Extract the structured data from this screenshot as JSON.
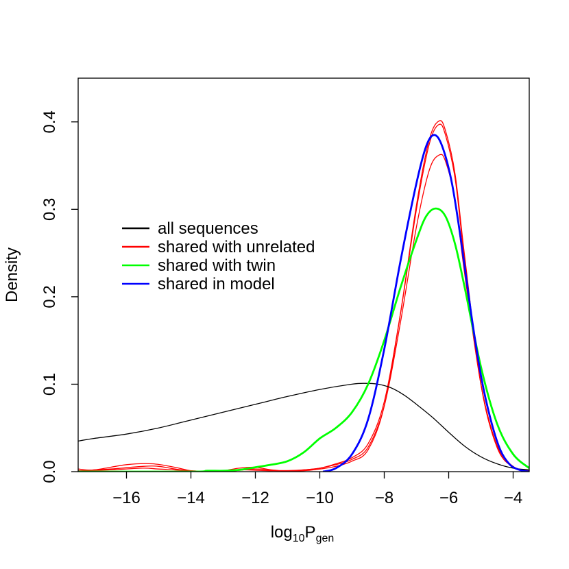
{
  "chart_data": {
    "type": "line",
    "title": "",
    "xlabel": {
      "base": "log",
      "sub1": "10",
      "main": "P",
      "sub2": "gen"
    },
    "ylabel": "Density",
    "xlim": [
      -17.5,
      -3.5
    ],
    "ylim": [
      0,
      0.45
    ],
    "grid": false,
    "legend_position": "center-left",
    "x_ticks": [
      -16,
      -14,
      -12,
      -10,
      -8,
      -6,
      -4
    ],
    "x_tick_labels": [
      "−16",
      "−14",
      "−12",
      "−10",
      "−8",
      "−6",
      "−4"
    ],
    "y_ticks": [
      0.0,
      0.1,
      0.2,
      0.3,
      0.4
    ],
    "y_tick_labels": [
      "0.0",
      "0.1",
      "0.2",
      "0.3",
      "0.4"
    ],
    "legend": [
      {
        "label": "all sequences",
        "color": "#000000"
      },
      {
        "label": "shared with unrelated",
        "color": "#ff0000"
      },
      {
        "label": "shared with twin",
        "color": "#00ff00"
      },
      {
        "label": "shared in model",
        "color": "#0000ff"
      }
    ],
    "series": [
      {
        "group": "all sequences",
        "color": "#000000",
        "width": 1.3,
        "points": [
          [
            -17.5,
            0.035
          ],
          [
            -17,
            0.038
          ],
          [
            -16,
            0.043
          ],
          [
            -15,
            0.05
          ],
          [
            -14,
            0.059
          ],
          [
            -13,
            0.068
          ],
          [
            -12,
            0.077
          ],
          [
            -11,
            0.086
          ],
          [
            -10,
            0.094
          ],
          [
            -9,
            0.1
          ],
          [
            -8.6,
            0.101
          ],
          [
            -8.2,
            0.1
          ],
          [
            -7.8,
            0.096
          ],
          [
            -7.4,
            0.088
          ],
          [
            -7,
            0.077
          ],
          [
            -6.5,
            0.062
          ],
          [
            -6,
            0.045
          ],
          [
            -5.5,
            0.029
          ],
          [
            -5,
            0.017
          ],
          [
            -4.5,
            0.009
          ],
          [
            -4,
            0.004
          ],
          [
            -3.5,
            0.002
          ]
        ]
      },
      {
        "group": "shared with unrelated",
        "color": "#ff0000",
        "width": 1.3,
        "points": [
          [
            -17.5,
            0.003
          ],
          [
            -17,
            0.002
          ],
          [
            -16,
            0.008
          ],
          [
            -15.2,
            0.009
          ],
          [
            -14.5,
            0.005
          ],
          [
            -14,
            0.001
          ],
          [
            -13.5,
            0
          ],
          [
            -13,
            0.001
          ],
          [
            -12.5,
            0.004
          ],
          [
            -12,
            0.005
          ],
          [
            -11.5,
            0.002
          ],
          [
            -11,
            0.001
          ],
          [
            -10.5,
            0.002
          ],
          [
            -10,
            0.004
          ],
          [
            -9.5,
            0.008
          ],
          [
            -9,
            0.014
          ],
          [
            -8.5,
            0.028
          ],
          [
            -8,
            0.075
          ],
          [
            -7.5,
            0.17
          ],
          [
            -7,
            0.28
          ],
          [
            -6.6,
            0.345
          ],
          [
            -6.3,
            0.362
          ],
          [
            -6.1,
            0.355
          ],
          [
            -5.8,
            0.31
          ],
          [
            -5.5,
            0.225
          ],
          [
            -5,
            0.1
          ],
          [
            -4.5,
            0.03
          ],
          [
            -4,
            0.006
          ],
          [
            -3.5,
            0.001
          ]
        ]
      },
      {
        "group": "shared with unrelated",
        "color": "#ff0000",
        "width": 1.3,
        "points": [
          [
            -17.5,
            0.001
          ],
          [
            -16.5,
            0.003
          ],
          [
            -15.5,
            0.006
          ],
          [
            -15,
            0.006
          ],
          [
            -14.3,
            0.002
          ],
          [
            -13.5,
            0
          ],
          [
            -12.5,
            0.002
          ],
          [
            -11.5,
            0.001
          ],
          [
            -10.5,
            0.002
          ],
          [
            -10,
            0.004
          ],
          [
            -9.5,
            0.009
          ],
          [
            -9,
            0.016
          ],
          [
            -8.5,
            0.032
          ],
          [
            -8,
            0.08
          ],
          [
            -7.5,
            0.18
          ],
          [
            -7,
            0.3
          ],
          [
            -6.6,
            0.375
          ],
          [
            -6.3,
            0.397
          ],
          [
            -6.1,
            0.385
          ],
          [
            -5.8,
            0.335
          ],
          [
            -5.5,
            0.24
          ],
          [
            -5,
            0.1
          ],
          [
            -4.5,
            0.028
          ],
          [
            -4,
            0.005
          ],
          [
            -3.5,
            0
          ]
        ]
      },
      {
        "group": "shared with unrelated",
        "color": "#ff0000",
        "width": 1.3,
        "points": [
          [
            -17.5,
            0.001
          ],
          [
            -16.5,
            0.002
          ],
          [
            -15.5,
            0.004
          ],
          [
            -15,
            0.003
          ],
          [
            -14,
            0.001
          ],
          [
            -13,
            0
          ],
          [
            -12,
            0.003
          ],
          [
            -11.3,
            0.001
          ],
          [
            -10.5,
            0.001
          ],
          [
            -10,
            0.003
          ],
          [
            -9.5,
            0.006
          ],
          [
            -9,
            0.012
          ],
          [
            -8.5,
            0.025
          ],
          [
            -8,
            0.075
          ],
          [
            -7.5,
            0.18
          ],
          [
            -7,
            0.305
          ],
          [
            -6.6,
            0.38
          ],
          [
            -6.3,
            0.401
          ],
          [
            -6.1,
            0.39
          ],
          [
            -5.8,
            0.34
          ],
          [
            -5.5,
            0.245
          ],
          [
            -5,
            0.1
          ],
          [
            -4.5,
            0.028
          ],
          [
            -4,
            0.005
          ],
          [
            -3.5,
            0
          ]
        ]
      },
      {
        "group": "shared with twin",
        "color": "#00ff00",
        "width": 2.8,
        "points": [
          [
            -17.5,
            0
          ],
          [
            -14,
            0
          ],
          [
            -13.5,
            0.001
          ],
          [
            -13,
            0.001
          ],
          [
            -12.5,
            0.002
          ],
          [
            -12,
            0.005
          ],
          [
            -11.5,
            0.008
          ],
          [
            -11,
            0.012
          ],
          [
            -10.5,
            0.022
          ],
          [
            -10,
            0.038
          ],
          [
            -9.5,
            0.05
          ],
          [
            -9,
            0.068
          ],
          [
            -8.5,
            0.1
          ],
          [
            -8,
            0.15
          ],
          [
            -7.5,
            0.21
          ],
          [
            -7,
            0.265
          ],
          [
            -6.7,
            0.292
          ],
          [
            -6.4,
            0.301
          ],
          [
            -6.1,
            0.292
          ],
          [
            -5.8,
            0.26
          ],
          [
            -5.5,
            0.21
          ],
          [
            -5,
            0.12
          ],
          [
            -4.5,
            0.055
          ],
          [
            -4,
            0.02
          ],
          [
            -3.5,
            0.004
          ]
        ]
      },
      {
        "group": "shared in model",
        "color": "#0000ff",
        "width": 2.8,
        "points": [
          [
            -9.9,
            0
          ],
          [
            -9.5,
            0.004
          ],
          [
            -9,
            0.02
          ],
          [
            -8.5,
            0.06
          ],
          [
            -8,
            0.14
          ],
          [
            -7.5,
            0.24
          ],
          [
            -7,
            0.33
          ],
          [
            -6.7,
            0.372
          ],
          [
            -6.45,
            0.385
          ],
          [
            -6.2,
            0.372
          ],
          [
            -5.9,
            0.33
          ],
          [
            -5.6,
            0.26
          ],
          [
            -5.3,
            0.18
          ],
          [
            -5,
            0.11
          ],
          [
            -4.7,
            0.06
          ],
          [
            -4.4,
            0.025
          ],
          [
            -4.1,
            0.008
          ],
          [
            -3.8,
            0.002
          ],
          [
            -3.5,
            0
          ]
        ]
      }
    ]
  }
}
